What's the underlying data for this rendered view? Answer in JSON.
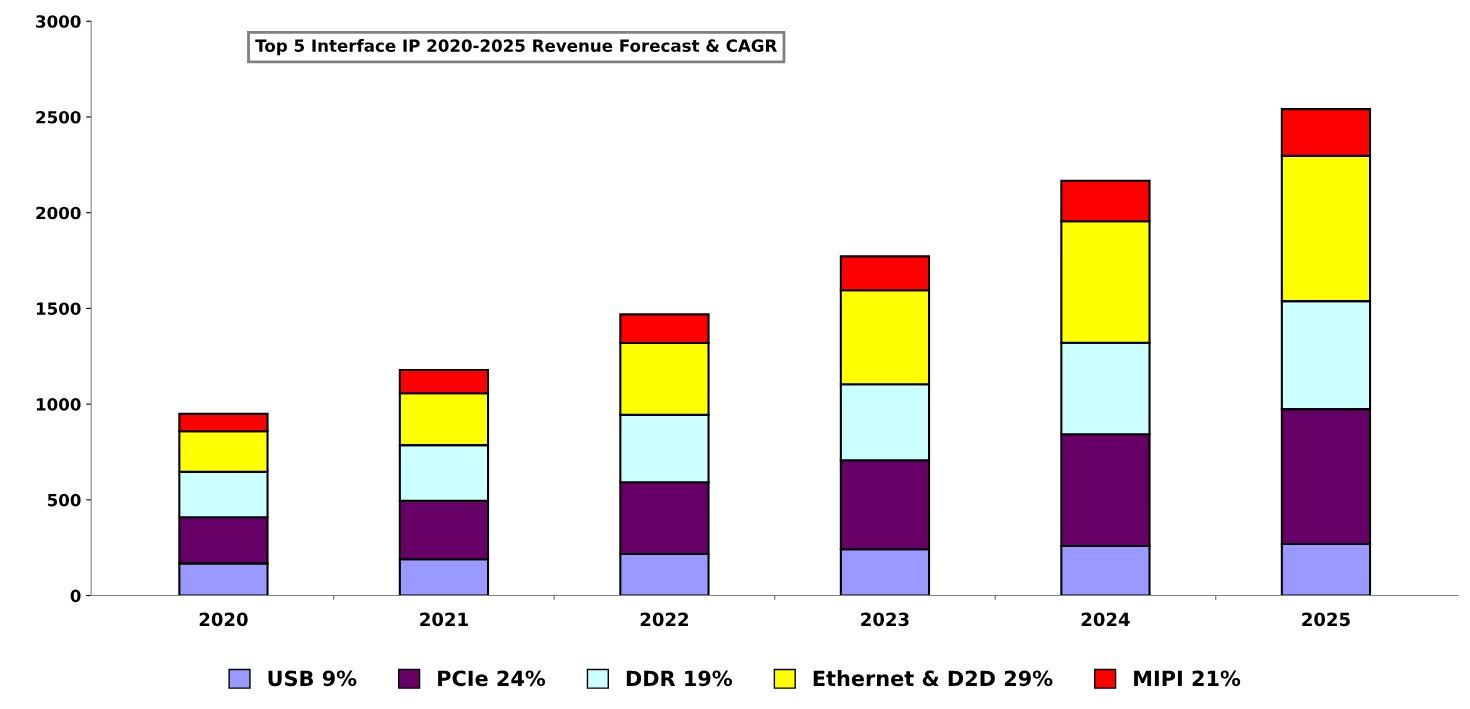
{
  "chart_data": {
    "type": "bar",
    "title": "Top 5 Interface IP 2020-2025 Revenue Forecast & CAGR",
    "categories": [
      "2020",
      "2021",
      "2022",
      "2023",
      "2024",
      "2025"
    ],
    "stacked": true,
    "series": [
      {
        "name": "USB 9%",
        "color": "#9999ff",
        "values": [
          168,
          190,
          217,
          242,
          259,
          269
        ]
      },
      {
        "name": "PCIe 24%",
        "color": "#660066",
        "values": [
          241,
          305,
          375,
          465,
          584,
          705
        ]
      },
      {
        "name": "DDR 19%",
        "color": "#ccffff",
        "values": [
          237,
          291,
          352,
          397,
          478,
          564
        ]
      },
      {
        "name": "Ethernet & D2D 29%",
        "color": "#ffff00",
        "values": [
          212,
          271,
          375,
          491,
          634,
          759
        ]
      },
      {
        "name": "MIPI 21%",
        "color": "#ff0000",
        "values": [
          91,
          121,
          150,
          177,
          212,
          244
        ]
      }
    ],
    "ylim": [
      0,
      3000
    ],
    "yticks": [
      0,
      500,
      1000,
      1500,
      2000,
      2500,
      3000
    ],
    "grid": false,
    "legend": "bottom"
  }
}
